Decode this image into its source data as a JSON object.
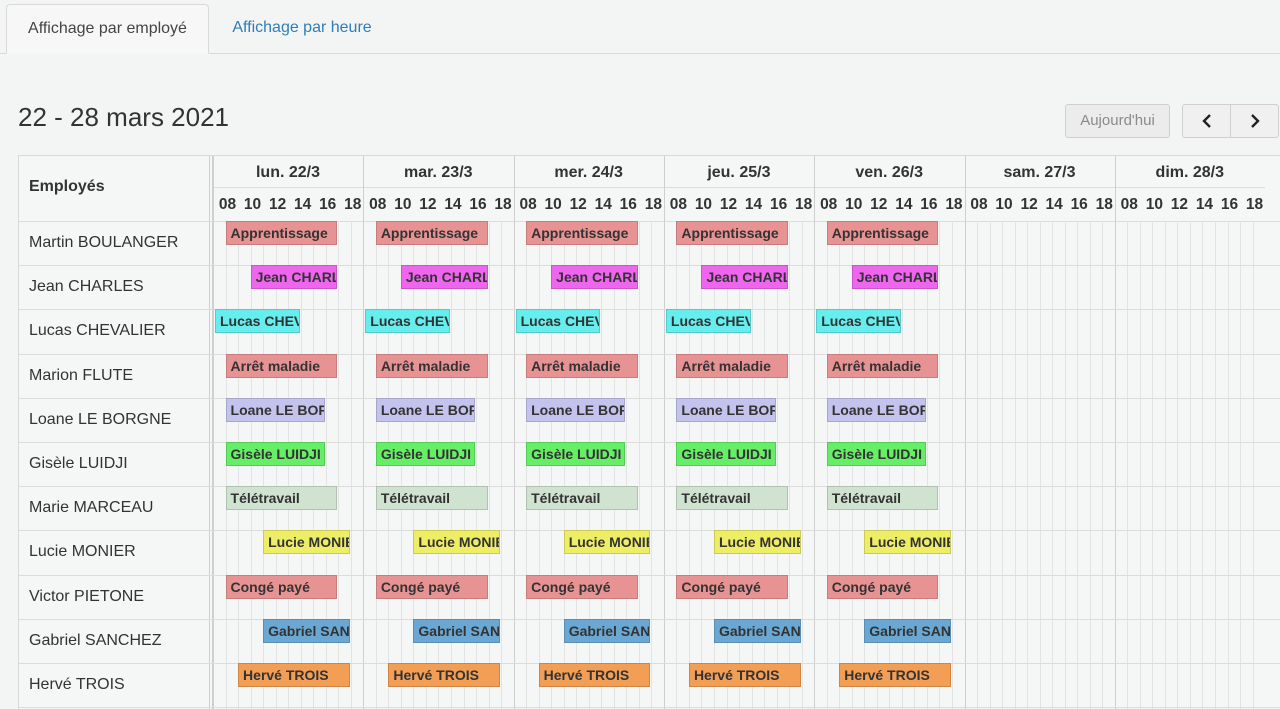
{
  "tabs": [
    {
      "label": "Affichage par employé",
      "active": true
    },
    {
      "label": "Affichage par heure",
      "active": false
    }
  ],
  "period_title": "22 - 28 mars 2021",
  "toolbar": {
    "today_label": "Aujourd'hui",
    "prev_icon": "chevron-left-icon",
    "next_icon": "chevron-right-icon"
  },
  "grid": {
    "employees_header": "Employés",
    "days": [
      "lun. 22/3",
      "mar. 23/3",
      "mer. 24/3",
      "jeu. 25/3",
      "ven. 26/3",
      "sam. 27/3",
      "dim. 28/3"
    ],
    "hours": [
      "08",
      "10",
      "12",
      "14",
      "16",
      "18"
    ],
    "employees": [
      {
        "name": "Martin BOULANGER",
        "event": "Apprentissage",
        "start": 9,
        "end": 18,
        "color": "#e89393"
      },
      {
        "name": "Jean CHARLES",
        "event": "Jean CHARLES",
        "start": 11,
        "end": 18,
        "color": "#ee66ee"
      },
      {
        "name": "Lucas CHEVALIER",
        "event": "Lucas CHEVALIER",
        "start": 8,
        "end": 15,
        "color": "#66eeee"
      },
      {
        "name": "Marion FLUTE",
        "event": "Arrêt maladie",
        "start": 9,
        "end": 18,
        "color": "#e89393"
      },
      {
        "name": "Loane LE BORGNE",
        "event": "Loane LE BORGNE",
        "start": 9,
        "end": 17,
        "color": "#c3c3ee"
      },
      {
        "name": "Gisèle LUIDJI",
        "event": "Gisèle LUIDJI",
        "start": 9,
        "end": 17,
        "color": "#66ee66"
      },
      {
        "name": "Marie MARCEAU",
        "event": "Télétravail",
        "start": 9,
        "end": 18,
        "color": "#cfe3d0"
      },
      {
        "name": "Lucie MONIER",
        "event": "Lucie MONIER",
        "start": 12,
        "end": 19,
        "color": "#eeee66"
      },
      {
        "name": "Victor PIETONE",
        "event": "Congé payé",
        "start": 9,
        "end": 18,
        "color": "#e89393"
      },
      {
        "name": "Gabriel SANCHEZ",
        "event": "Gabriel SANCHEZ",
        "start": 12,
        "end": 19,
        "color": "#6aa8d3"
      },
      {
        "name": "Hervé TROIS",
        "event": "Hervé TROIS",
        "start": 10,
        "end": 19,
        "color": "#f29e55"
      }
    ],
    "working_days": 5
  }
}
